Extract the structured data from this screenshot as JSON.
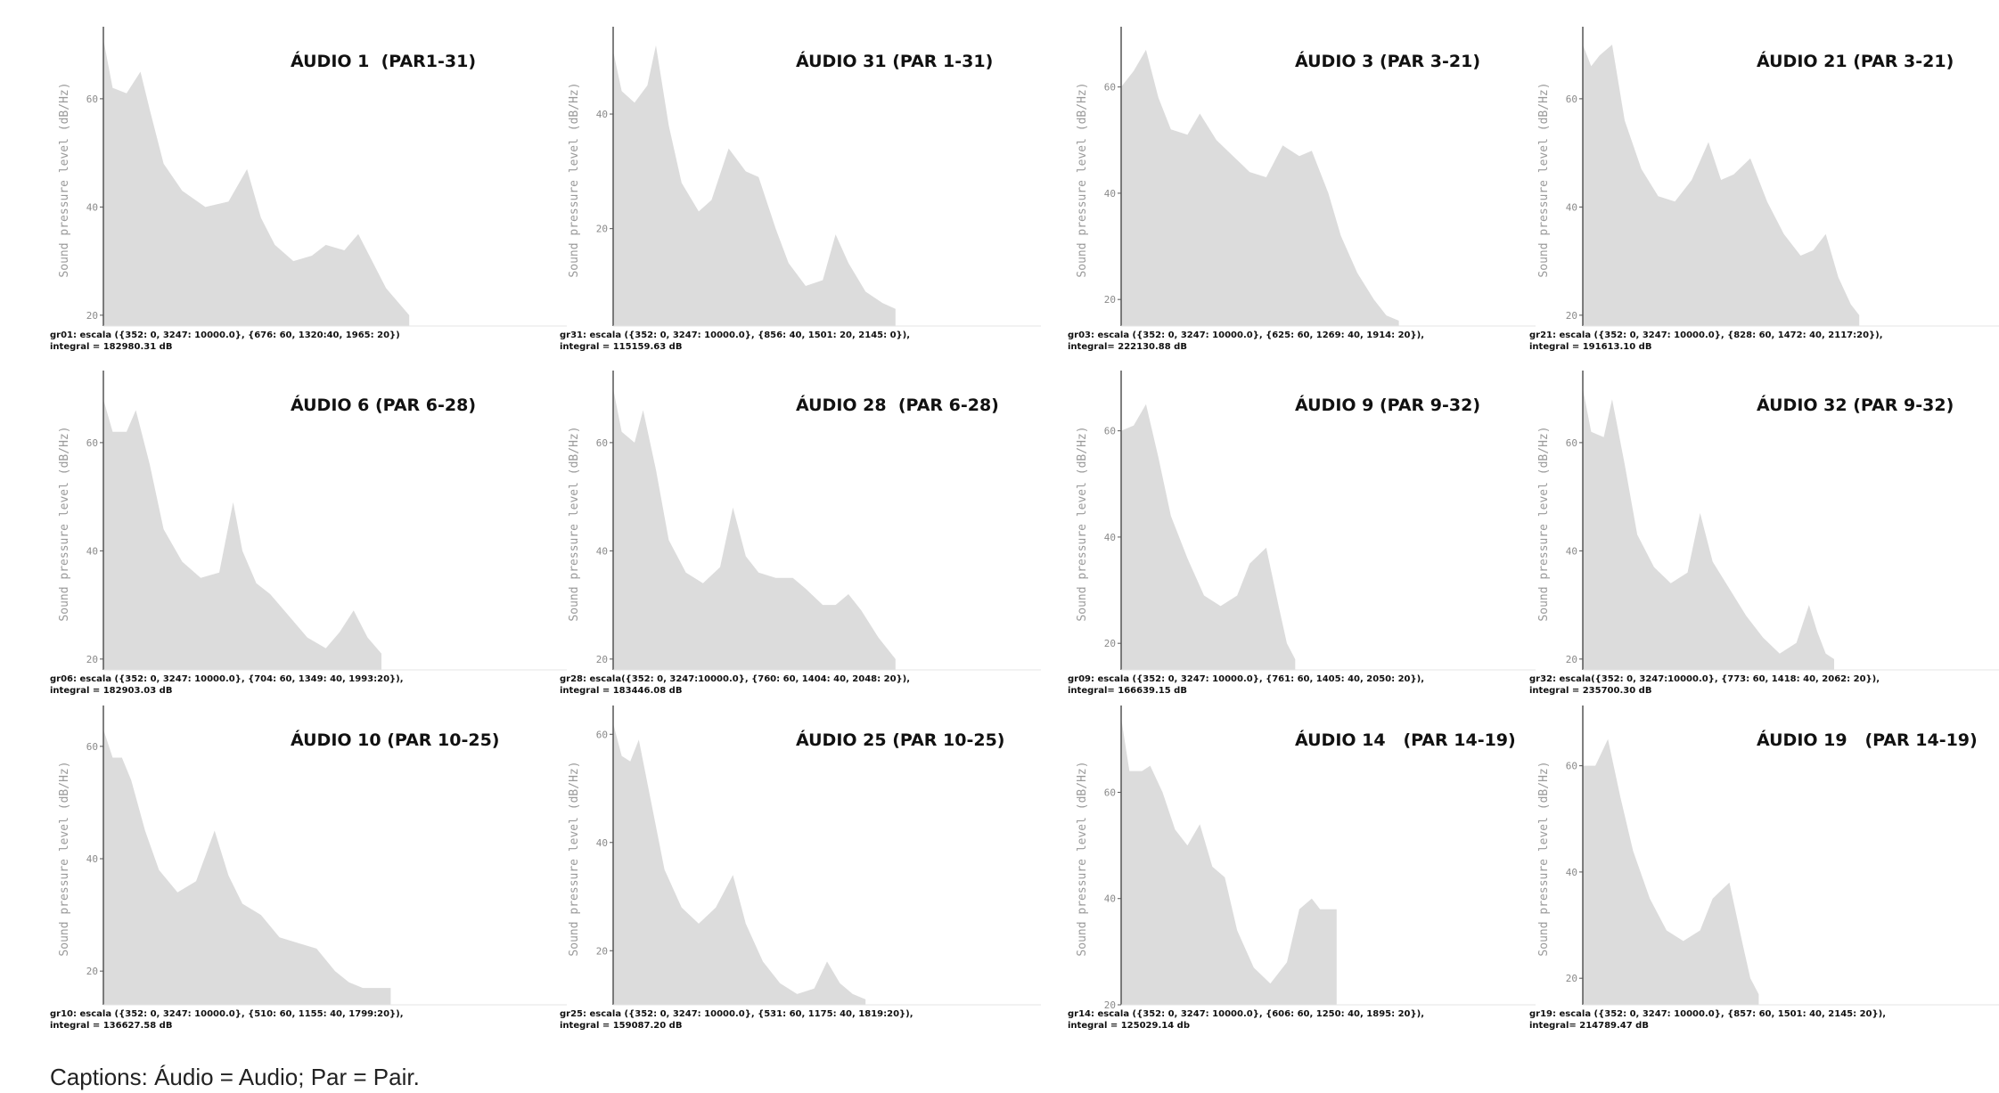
{
  "colors": {
    "area": "#dcdcdc",
    "axis": "#555555",
    "text": "#111111",
    "ytext": "#9a9a9a"
  },
  "footnote": "Captions: Áudio = Audio; Par = Pair.",
  "chart_data": [
    {
      "type": "area",
      "title": "ÁUDIO 1  (PAR1-31)",
      "ylabel": "Sound pressure level (dB/Hz)",
      "yticks": [
        20,
        40,
        60
      ],
      "ylim": [
        18,
        72
      ],
      "x": [
        0,
        0.02,
        0.05,
        0.08,
        0.1,
        0.13,
        0.17,
        0.22,
        0.27,
        0.31,
        0.34,
        0.37,
        0.41,
        0.45,
        0.48,
        0.52,
        0.55,
        0.58,
        0.61,
        0.64,
        0.66
      ],
      "y": [
        71,
        62,
        61,
        65,
        58,
        48,
        43,
        40,
        41,
        47,
        38,
        33,
        30,
        31,
        33,
        32,
        35,
        30,
        25,
        22,
        20
      ],
      "caption1": "gr01: escala ({352: 0, 3247: 10000.0}, {676: 60, 1320:40, 1965: 20})",
      "caption2": "integral = 182980.31 dB"
    },
    {
      "type": "area",
      "title": "ÁUDIO 31 (PAR 1-31)",
      "ylabel": "Sound pressure level (dB/Hz)",
      "yticks": [
        20,
        40
      ],
      "ylim": [
        3,
        54
      ],
      "x": [
        0,
        0.02,
        0.05,
        0.08,
        0.1,
        0.13,
        0.16,
        0.2,
        0.23,
        0.27,
        0.31,
        0.34,
        0.38,
        0.41,
        0.45,
        0.49,
        0.52,
        0.55,
        0.59,
        0.63,
        0.66
      ],
      "y": [
        51,
        44,
        42,
        45,
        52,
        38,
        28,
        23,
        25,
        34,
        30,
        29,
        20,
        14,
        10,
        11,
        19,
        14,
        9,
        7,
        6
      ],
      "caption1": "gr31: escala ({352: 0, 3247: 10000.0}, {856: 40, 1501: 20, 2145: 0}),",
      "caption2": "integral = 115159.63 dB"
    },
    {
      "type": "area",
      "title": "ÁUDIO 3 (PAR 3-21)",
      "ylabel": "Sound pressure level (dB/Hz)",
      "yticks": [
        20,
        40,
        60
      ],
      "ylim": [
        15,
        70
      ],
      "x": [
        0,
        0.03,
        0.06,
        0.09,
        0.12,
        0.16,
        0.19,
        0.23,
        0.27,
        0.31,
        0.35,
        0.39,
        0.43,
        0.46,
        0.5,
        0.53,
        0.57,
        0.61,
        0.64,
        0.67
      ],
      "y": [
        60,
        63,
        67,
        58,
        52,
        51,
        55,
        50,
        47,
        44,
        43,
        49,
        47,
        48,
        40,
        32,
        25,
        20,
        17,
        16
      ],
      "caption1": "gr03: escala ({352: 0, 3247: 10000.0}, {625: 60, 1269: 40, 1914: 20}),",
      "caption2": "integral= 222130.88 dB"
    },
    {
      "type": "area",
      "title": "ÁUDIO 21 (PAR 3-21)",
      "ylabel": "Sound pressure level (dB/Hz)",
      "yticks": [
        20,
        40,
        60
      ],
      "ylim": [
        18,
        72
      ],
      "x": [
        0,
        0.02,
        0.04,
        0.07,
        0.1,
        0.14,
        0.18,
        0.22,
        0.26,
        0.3,
        0.33,
        0.36,
        0.4,
        0.44,
        0.48,
        0.52,
        0.55,
        0.58,
        0.61,
        0.64,
        0.66
      ],
      "y": [
        70,
        66,
        68,
        70,
        56,
        47,
        42,
        41,
        45,
        52,
        45,
        46,
        49,
        41,
        35,
        31,
        32,
        35,
        27,
        22,
        20
      ],
      "caption1": "gr21: escala ({352: 0, 3247: 10000.0}, {828: 60, 1472: 40, 2117:20}),",
      "caption2": "integral = 191613.10 dB"
    },
    {
      "type": "area",
      "title": "ÁUDIO 6 (PAR 6-28)",
      "ylabel": "Sound pressure level (dB/Hz)",
      "yticks": [
        20,
        40,
        60
      ],
      "ylim": [
        18,
        72
      ],
      "x": [
        0,
        0.02,
        0.05,
        0.07,
        0.1,
        0.13,
        0.17,
        0.21,
        0.25,
        0.28,
        0.3,
        0.33,
        0.36,
        0.4,
        0.44,
        0.48,
        0.51,
        0.54,
        0.57,
        0.6
      ],
      "y": [
        68,
        62,
        62,
        66,
        56,
        44,
        38,
        35,
        36,
        49,
        40,
        34,
        32,
        28,
        24,
        22,
        25,
        29,
        24,
        21
      ],
      "caption1": "gr06: escala ({352: 0, 3247: 10000.0}, {704: 60, 1349: 40, 1993:20}),",
      "caption2": "integral = 182903.03 dB"
    },
    {
      "type": "area",
      "title": "ÁUDIO 28  (PAR 6-28)",
      "ylabel": "Sound pressure level (dB/Hz)",
      "yticks": [
        20,
        40,
        60
      ],
      "ylim": [
        18,
        72
      ],
      "x": [
        0,
        0.02,
        0.05,
        0.07,
        0.1,
        0.13,
        0.17,
        0.21,
        0.25,
        0.28,
        0.31,
        0.34,
        0.38,
        0.42,
        0.45,
        0.49,
        0.52,
        0.55,
        0.58,
        0.62,
        0.66
      ],
      "y": [
        70,
        62,
        60,
        66,
        55,
        42,
        36,
        34,
        37,
        48,
        39,
        36,
        35,
        35,
        33,
        30,
        30,
        32,
        29,
        24,
        20
      ],
      "caption1": "gr28: escala({352: 0, 3247:10000.0}, {760: 60, 1404: 40, 2048: 20}),",
      "caption2": "integral = 183446.08 dB"
    },
    {
      "type": "area",
      "title": "ÁUDIO 9 (PAR 9-32)",
      "ylabel": "Sound pressure level (dB/Hz)",
      "yticks": [
        20,
        40,
        60
      ],
      "ylim": [
        15,
        70
      ],
      "x": [
        0,
        0.03,
        0.06,
        0.09,
        0.12,
        0.16,
        0.2,
        0.24,
        0.28,
        0.31,
        0.35,
        0.38,
        0.4,
        0.42
      ],
      "y": [
        60,
        61,
        65,
        55,
        44,
        36,
        29,
        27,
        29,
        35,
        38,
        27,
        20,
        17
      ],
      "caption1": "gr09: escala ({352: 0, 3247: 10000.0}, {761: 60, 1405: 40, 2050: 20}),",
      "caption2": "integral= 166639.15 dB"
    },
    {
      "type": "area",
      "title": "ÁUDIO 32 (PAR 9-32)",
      "ylabel": "Sound pressure level (dB/Hz)",
      "yticks": [
        20,
        40,
        60
      ],
      "ylim": [
        18,
        72
      ],
      "x": [
        0,
        0.02,
        0.05,
        0.07,
        0.1,
        0.13,
        0.17,
        0.21,
        0.25,
        0.28,
        0.31,
        0.35,
        0.39,
        0.43,
        0.47,
        0.51,
        0.54,
        0.56,
        0.58,
        0.6
      ],
      "y": [
        70,
        62,
        61,
        68,
        56,
        43,
        37,
        34,
        36,
        47,
        38,
        33,
        28,
        24,
        21,
        23,
        30,
        25,
        21,
        20
      ],
      "caption1": "gr32: escala({352: 0, 3247:10000.0}, {773: 60, 1418: 40, 2062: 20}),",
      "caption2": "integral = 235700.30 dB"
    },
    {
      "type": "area",
      "title": "ÁUDIO 10 (PAR 10-25)",
      "ylabel": "Sound pressure level (dB/Hz)",
      "yticks": [
        20,
        40,
        60
      ],
      "ylim": [
        14,
        66
      ],
      "x": [
        0,
        0.02,
        0.04,
        0.06,
        0.09,
        0.12,
        0.16,
        0.2,
        0.24,
        0.27,
        0.3,
        0.34,
        0.38,
        0.42,
        0.46,
        0.5,
        0.53,
        0.56,
        0.59,
        0.62
      ],
      "y": [
        63,
        58,
        58,
        54,
        45,
        38,
        34,
        36,
        45,
        37,
        32,
        30,
        26,
        25,
        24,
        20,
        18,
        17,
        17,
        17
      ],
      "caption1": "gr10: escala ({352: 0, 3247: 10000.0}, {510: 60, 1155: 40, 1799:20}),",
      "caption2": "integral = 136627.58 dB"
    },
    {
      "type": "area",
      "title": "ÁUDIO 25 (PAR 10-25)",
      "ylabel": "Sound pressure level (dB/Hz)",
      "yticks": [
        20,
        40,
        60
      ],
      "ylim": [
        10,
        64
      ],
      "x": [
        0,
        0.02,
        0.04,
        0.06,
        0.09,
        0.12,
        0.16,
        0.2,
        0.24,
        0.28,
        0.31,
        0.35,
        0.39,
        0.43,
        0.47,
        0.5,
        0.53,
        0.56,
        0.59
      ],
      "y": [
        62,
        56,
        55,
        59,
        47,
        35,
        28,
        25,
        28,
        34,
        25,
        18,
        14,
        12,
        13,
        18,
        14,
        12,
        11
      ],
      "caption1": "gr25: escala ({352: 0, 3247: 10000.0}, {531: 60, 1175: 40, 1819:20}),",
      "caption2": "integral = 159087.20 dB"
    },
    {
      "type": "area",
      "title": "ÁUDIO 14   (PAR 14-19)",
      "ylabel": "Sound pressure level (dB/Hz)",
      "yticks": [
        20,
        40,
        60
      ],
      "ylim": [
        20,
        75
      ],
      "x": [
        0,
        0.02,
        0.05,
        0.07,
        0.1,
        0.13,
        0.16,
        0.19,
        0.22,
        0.25,
        0.28,
        0.32,
        0.36,
        0.4,
        0.43,
        0.46,
        0.48,
        0.5,
        0.52
      ],
      "y": [
        74,
        64,
        64,
        65,
        60,
        53,
        50,
        54,
        46,
        44,
        34,
        27,
        24,
        28,
        38,
        40,
        38,
        38,
        38
      ],
      "caption1": "gr14: escala ({352: 0, 3247: 10000.0}, {606: 60, 1250: 40, 1895: 20}),",
      "caption2": "integral = 125029.14 db"
    },
    {
      "type": "area",
      "title": "ÁUDIO 19   (PAR 14-19)",
      "ylabel": "Sound pressure level (dB/Hz)",
      "yticks": [
        20,
        40,
        60
      ],
      "ylim": [
        15,
        70
      ],
      "x": [
        0,
        0.03,
        0.06,
        0.09,
        0.12,
        0.16,
        0.2,
        0.24,
        0.28,
        0.31,
        0.35,
        0.38,
        0.4,
        0.42
      ],
      "y": [
        60,
        60,
        65,
        54,
        44,
        35,
        29,
        27,
        29,
        35,
        38,
        27,
        20,
        17
      ],
      "caption1": "gr19: escala ({352: 0, 3247: 10000.0}, {857: 60, 1501: 40, 2145: 20}),",
      "caption2": "integral= 214789.47 dB"
    }
  ]
}
